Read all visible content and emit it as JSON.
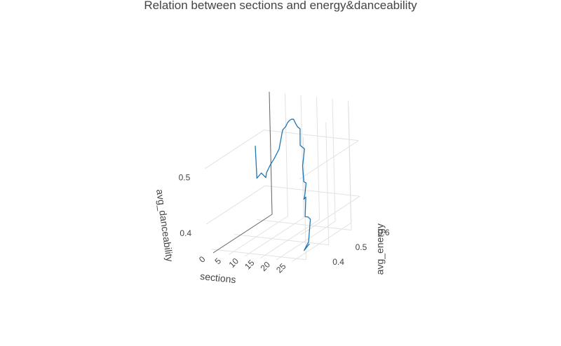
{
  "chart_data": {
    "type": "line",
    "title": "Relation between sections and energy&danceability",
    "xlabel": "sections",
    "ylabel": "avg_energy",
    "zlabel": "avg_danceability",
    "xlim": [
      -2,
      28
    ],
    "ylim": [
      0.38,
      0.64
    ],
    "zlim": [
      0.35,
      0.57
    ],
    "x_ticks": [
      "0",
      "5",
      "10",
      "15",
      "20",
      "25"
    ],
    "y_ticks": [
      "0.4",
      "0.5",
      "0.6"
    ],
    "z_ticks": [
      "0.4",
      "0.5"
    ],
    "grid": true,
    "legend": "none",
    "series": [
      {
        "color": "#1f77b4",
        "points": [
          [
            1,
            0.56,
            0.495
          ],
          [
            2,
            0.55,
            0.44
          ],
          [
            2,
            0.57,
            0.444
          ],
          [
            3,
            0.575,
            0.435
          ],
          [
            4,
            0.565,
            0.447
          ],
          [
            6,
            0.555,
            0.465
          ],
          [
            8,
            0.545,
            0.48
          ],
          [
            10,
            0.54,
            0.5
          ],
          [
            11,
            0.54,
            0.528
          ],
          [
            12,
            0.53,
            0.538
          ],
          [
            13,
            0.53,
            0.545
          ],
          [
            14,
            0.525,
            0.554
          ],
          [
            15,
            0.52,
            0.56
          ],
          [
            16,
            0.515,
            0.564
          ],
          [
            17,
            0.51,
            0.566
          ],
          [
            18,
            0.505,
            0.56
          ],
          [
            19,
            0.5,
            0.556
          ],
          [
            19,
            0.51,
            0.55
          ],
          [
            20,
            0.495,
            0.525
          ],
          [
            21,
            0.5,
            0.518
          ],
          [
            21,
            0.49,
            0.49
          ],
          [
            22,
            0.48,
            0.465
          ],
          [
            22,
            0.49,
            0.46
          ],
          [
            23,
            0.47,
            0.445
          ],
          [
            23,
            0.465,
            0.438
          ],
          [
            24,
            0.46,
            0.444
          ],
          [
            24,
            0.455,
            0.41
          ],
          [
            25,
            0.455,
            0.41
          ],
          [
            26,
            0.45,
            0.408
          ],
          [
            26,
            0.44,
            0.37
          ],
          [
            26,
            0.42,
            0.36
          ],
          [
            27,
            0.43,
            0.37
          ]
        ]
      }
    ]
  }
}
